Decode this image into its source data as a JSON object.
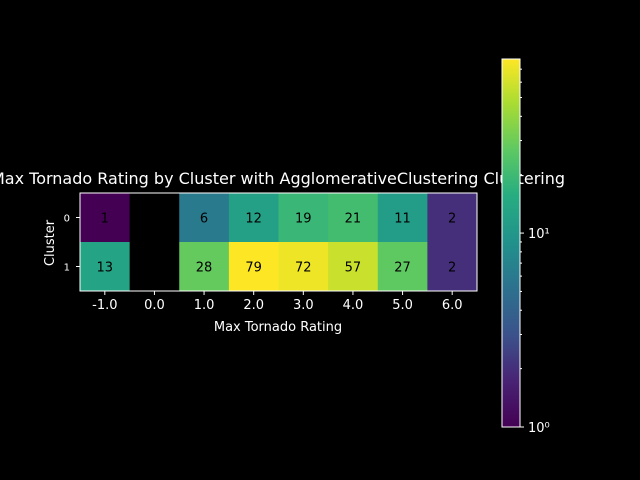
{
  "chart_data": {
    "type": "heatmap",
    "title": "Max Tornado Rating by Cluster with AgglomerativeClustering Clustering",
    "xlabel": "Max Tornado Rating",
    "ylabel": "Cluster",
    "x_categories": [
      "-1.0",
      "0.0",
      "1.0",
      "2.0",
      "3.0",
      "4.0",
      "5.0",
      "6.0"
    ],
    "y_categories": [
      "0",
      "1"
    ],
    "values": [
      [
        1,
        null,
        6,
        12,
        19,
        21,
        11,
        2
      ],
      [
        13,
        null,
        28,
        79,
        72,
        57,
        27,
        2
      ]
    ],
    "color_scale": "log",
    "colormap": "viridis",
    "vmin": 1,
    "vmax": 79,
    "missing_color": "#000000",
    "colorbar": {
      "tick_labels": [
        "10⁰",
        "10¹"
      ],
      "tick_values": [
        1,
        10
      ]
    },
    "background": "#000000",
    "text_color": "#ffffff"
  }
}
